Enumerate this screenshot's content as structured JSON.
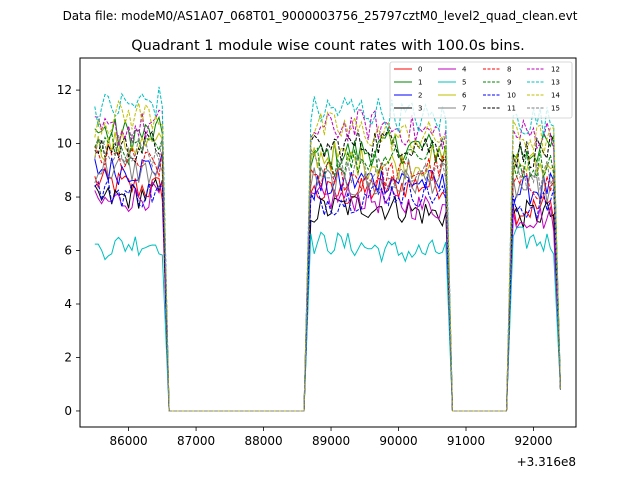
{
  "figure": {
    "suptitle": "Data file: modeM0/AS1A07_068T01_9000003756_25797cztM0_level2_quad_clean.evt"
  },
  "chart_data": {
    "type": "line",
    "title": "Quadrant 1 module wise count rates with 100.0s bins.",
    "xlabel": "",
    "ylabel": "",
    "x_offset_label": "+3.316e8",
    "xlim": [
      85280,
      92630
    ],
    "ylim": [
      -0.6,
      13.2
    ],
    "xticks": [
      86000,
      87000,
      88000,
      89000,
      90000,
      91000,
      92000
    ],
    "xtick_labels": [
      "86000",
      "87000",
      "88000",
      "89000",
      "90000",
      "91000",
      "92000"
    ],
    "yticks": [
      0,
      2,
      4,
      6,
      8,
      10,
      12
    ],
    "ytick_labels": [
      "0",
      "2",
      "4",
      "6",
      "8",
      "10",
      "12"
    ],
    "legend_position": "top-right",
    "legend_columns": 4,
    "segments": [
      {
        "start": 85500,
        "end": 86500,
        "drop_end": 86600
      },
      {
        "start": 88700,
        "end": 90700,
        "drop_end": 90800
      },
      {
        "start": 91700,
        "end": 92300,
        "drop_end": 92400
      }
    ],
    "gaps": [
      [
        86600,
        88600
      ],
      [
        90800,
        91600
      ]
    ],
    "series": [
      {
        "name": "0",
        "color": "#ff0000",
        "dash": "solid",
        "levels": [
          8.5,
          8.3,
          7.7
        ]
      },
      {
        "name": "1",
        "color": "#008000",
        "dash": "solid",
        "levels": [
          10.5,
          9.7,
          9.8
        ]
      },
      {
        "name": "2",
        "color": "#0000ff",
        "dash": "solid",
        "levels": [
          9.2,
          8.5,
          8.2
        ]
      },
      {
        "name": "3",
        "color": "#000000",
        "dash": "solid",
        "levels": [
          8.1,
          7.5,
          7.2
        ]
      },
      {
        "name": "4",
        "color": "#bf00bf",
        "dash": "solid",
        "levels": [
          7.9,
          7.8,
          7.1
        ]
      },
      {
        "name": "5",
        "color": "#00bfbf",
        "dash": "solid",
        "levels": [
          6.1,
          6.1,
          6.3
        ]
      },
      {
        "name": "6",
        "color": "#bfbf00",
        "dash": "solid",
        "levels": [
          9.8,
          9.4,
          9.2
        ]
      },
      {
        "name": "7",
        "color": "#808080",
        "dash": "solid",
        "levels": [
          8.9,
          8.6,
          8.4
        ]
      },
      {
        "name": "8",
        "color": "#ff0000",
        "dash": "dashed",
        "levels": [
          9.3,
          8.9,
          8.6
        ]
      },
      {
        "name": "9",
        "color": "#008000",
        "dash": "dashed",
        "levels": [
          9.9,
          9.5,
          9.4
        ]
      },
      {
        "name": "10",
        "color": "#0000ff",
        "dash": "dashed",
        "levels": [
          8.3,
          8.0,
          7.7
        ]
      },
      {
        "name": "11",
        "color": "#000000",
        "dash": "dashed",
        "levels": [
          10.0,
          9.9,
          9.6
        ]
      },
      {
        "name": "12",
        "color": "#bf00bf",
        "dash": "dashed",
        "levels": [
          10.6,
          10.5,
          10.2
        ]
      },
      {
        "name": "13",
        "color": "#00bfbf",
        "dash": "dashed",
        "levels": [
          11.4,
          11.1,
          10.7
        ]
      },
      {
        "name": "14",
        "color": "#bfbf00",
        "dash": "dashed",
        "levels": [
          10.9,
          10.4,
          10.1
        ]
      },
      {
        "name": "15",
        "color": "#808080",
        "dash": "dashed",
        "levels": [
          9.6,
          9.1,
          8.9
        ]
      }
    ]
  }
}
